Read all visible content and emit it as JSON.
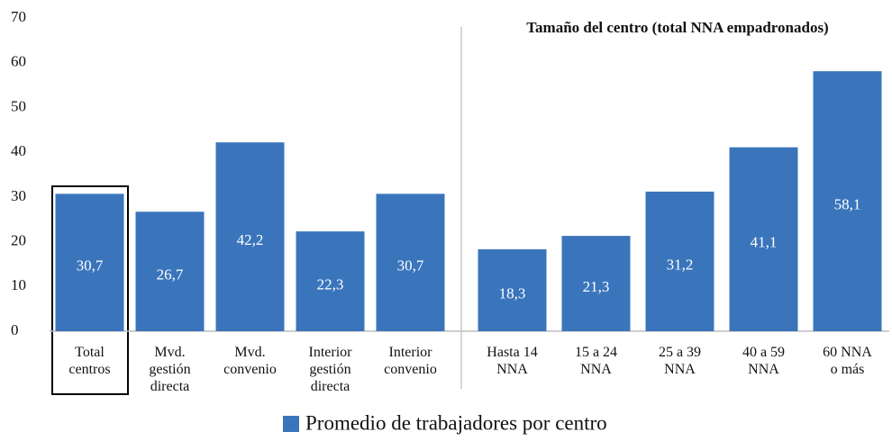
{
  "chart_data": {
    "type": "bar",
    "annotation": "Tamaño del centro (total NNA empadronados)",
    "categories": [
      "Total\ncentros",
      "Mvd.\ngestión\ndirecta",
      "Mvd.\nconvenio",
      "Interior\ngestión\ndirecta",
      "Interior\nconvenio",
      "Hasta 14\nNNA",
      "15 a 24\nNNA",
      "25 a 39\nNNA",
      "40 a 59\nNNA",
      "60 NNA\no más"
    ],
    "series": [
      {
        "name": "Promedio de trabajadores por centro",
        "color": "#3a75bc",
        "values": [
          30.7,
          26.7,
          42.2,
          22.3,
          30.7,
          18.3,
          21.3,
          31.2,
          41.1,
          58.1
        ],
        "value_labels": [
          "30,7",
          "26,7",
          "42,2",
          "22,3",
          "30,7",
          "18,3",
          "21,3",
          "31,2",
          "41,1",
          "58,1"
        ]
      }
    ],
    "ylim": [
      0,
      70
    ],
    "yticks": [
      0,
      10,
      20,
      30,
      40,
      50,
      60,
      70
    ],
    "grid": false
  }
}
